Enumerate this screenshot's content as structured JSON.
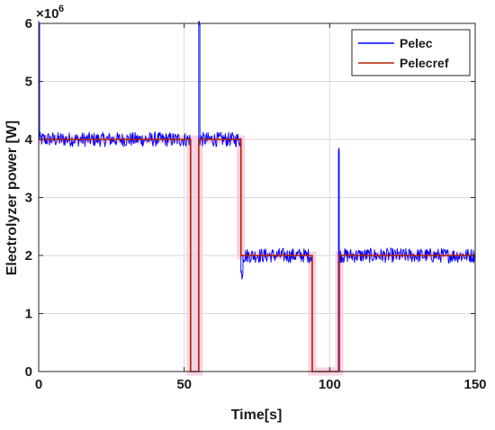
{
  "chart_data": {
    "type": "line",
    "title": "",
    "xlabel": "Time[s]",
    "ylabel": "Electrolyzer power [W]",
    "xlim": [
      0,
      150
    ],
    "ylim": [
      0,
      6000000
    ],
    "x_ticks": [
      0,
      50,
      100,
      150
    ],
    "y_ticks": [
      0,
      1,
      2,
      3,
      4,
      5,
      6
    ],
    "y_multiplier_label": "×10",
    "y_multiplier_exponent": "6",
    "grid": true,
    "legend_position": "top-right",
    "series": [
      {
        "name": "Pelec",
        "color": "#0000ff",
        "style": "noisy",
        "noise_amplitude": 130000,
        "x": [
          0,
          0,
          0.3,
          0.3,
          52.2,
          52.2,
          55,
          55,
          55.4,
          55.4,
          69.5,
          69.5,
          70.2,
          70.2,
          94,
          94,
          103,
          103,
          103.3,
          103.3,
          105,
          105,
          150
        ],
        "y": [
          3200000,
          6000000,
          6000000,
          4000000,
          4000000,
          0,
          0,
          6000000,
          6000000,
          4000000,
          4000000,
          1700000,
          1700000,
          2000000,
          2000000,
          0,
          0,
          3780000,
          3780000,
          2000000,
          2000000,
          2000000,
          2000000
        ]
      },
      {
        "name": "Pelecref",
        "color": "#b22000",
        "style": "step",
        "x": [
          0,
          52.2,
          52.2,
          55,
          55,
          69.5,
          69.5,
          94,
          94,
          103.3,
          103.3,
          150
        ],
        "y": [
          4000000,
          4000000,
          0,
          0,
          4000000,
          4000000,
          2000000,
          2000000,
          0,
          0,
          2000000,
          2000000
        ]
      }
    ]
  }
}
